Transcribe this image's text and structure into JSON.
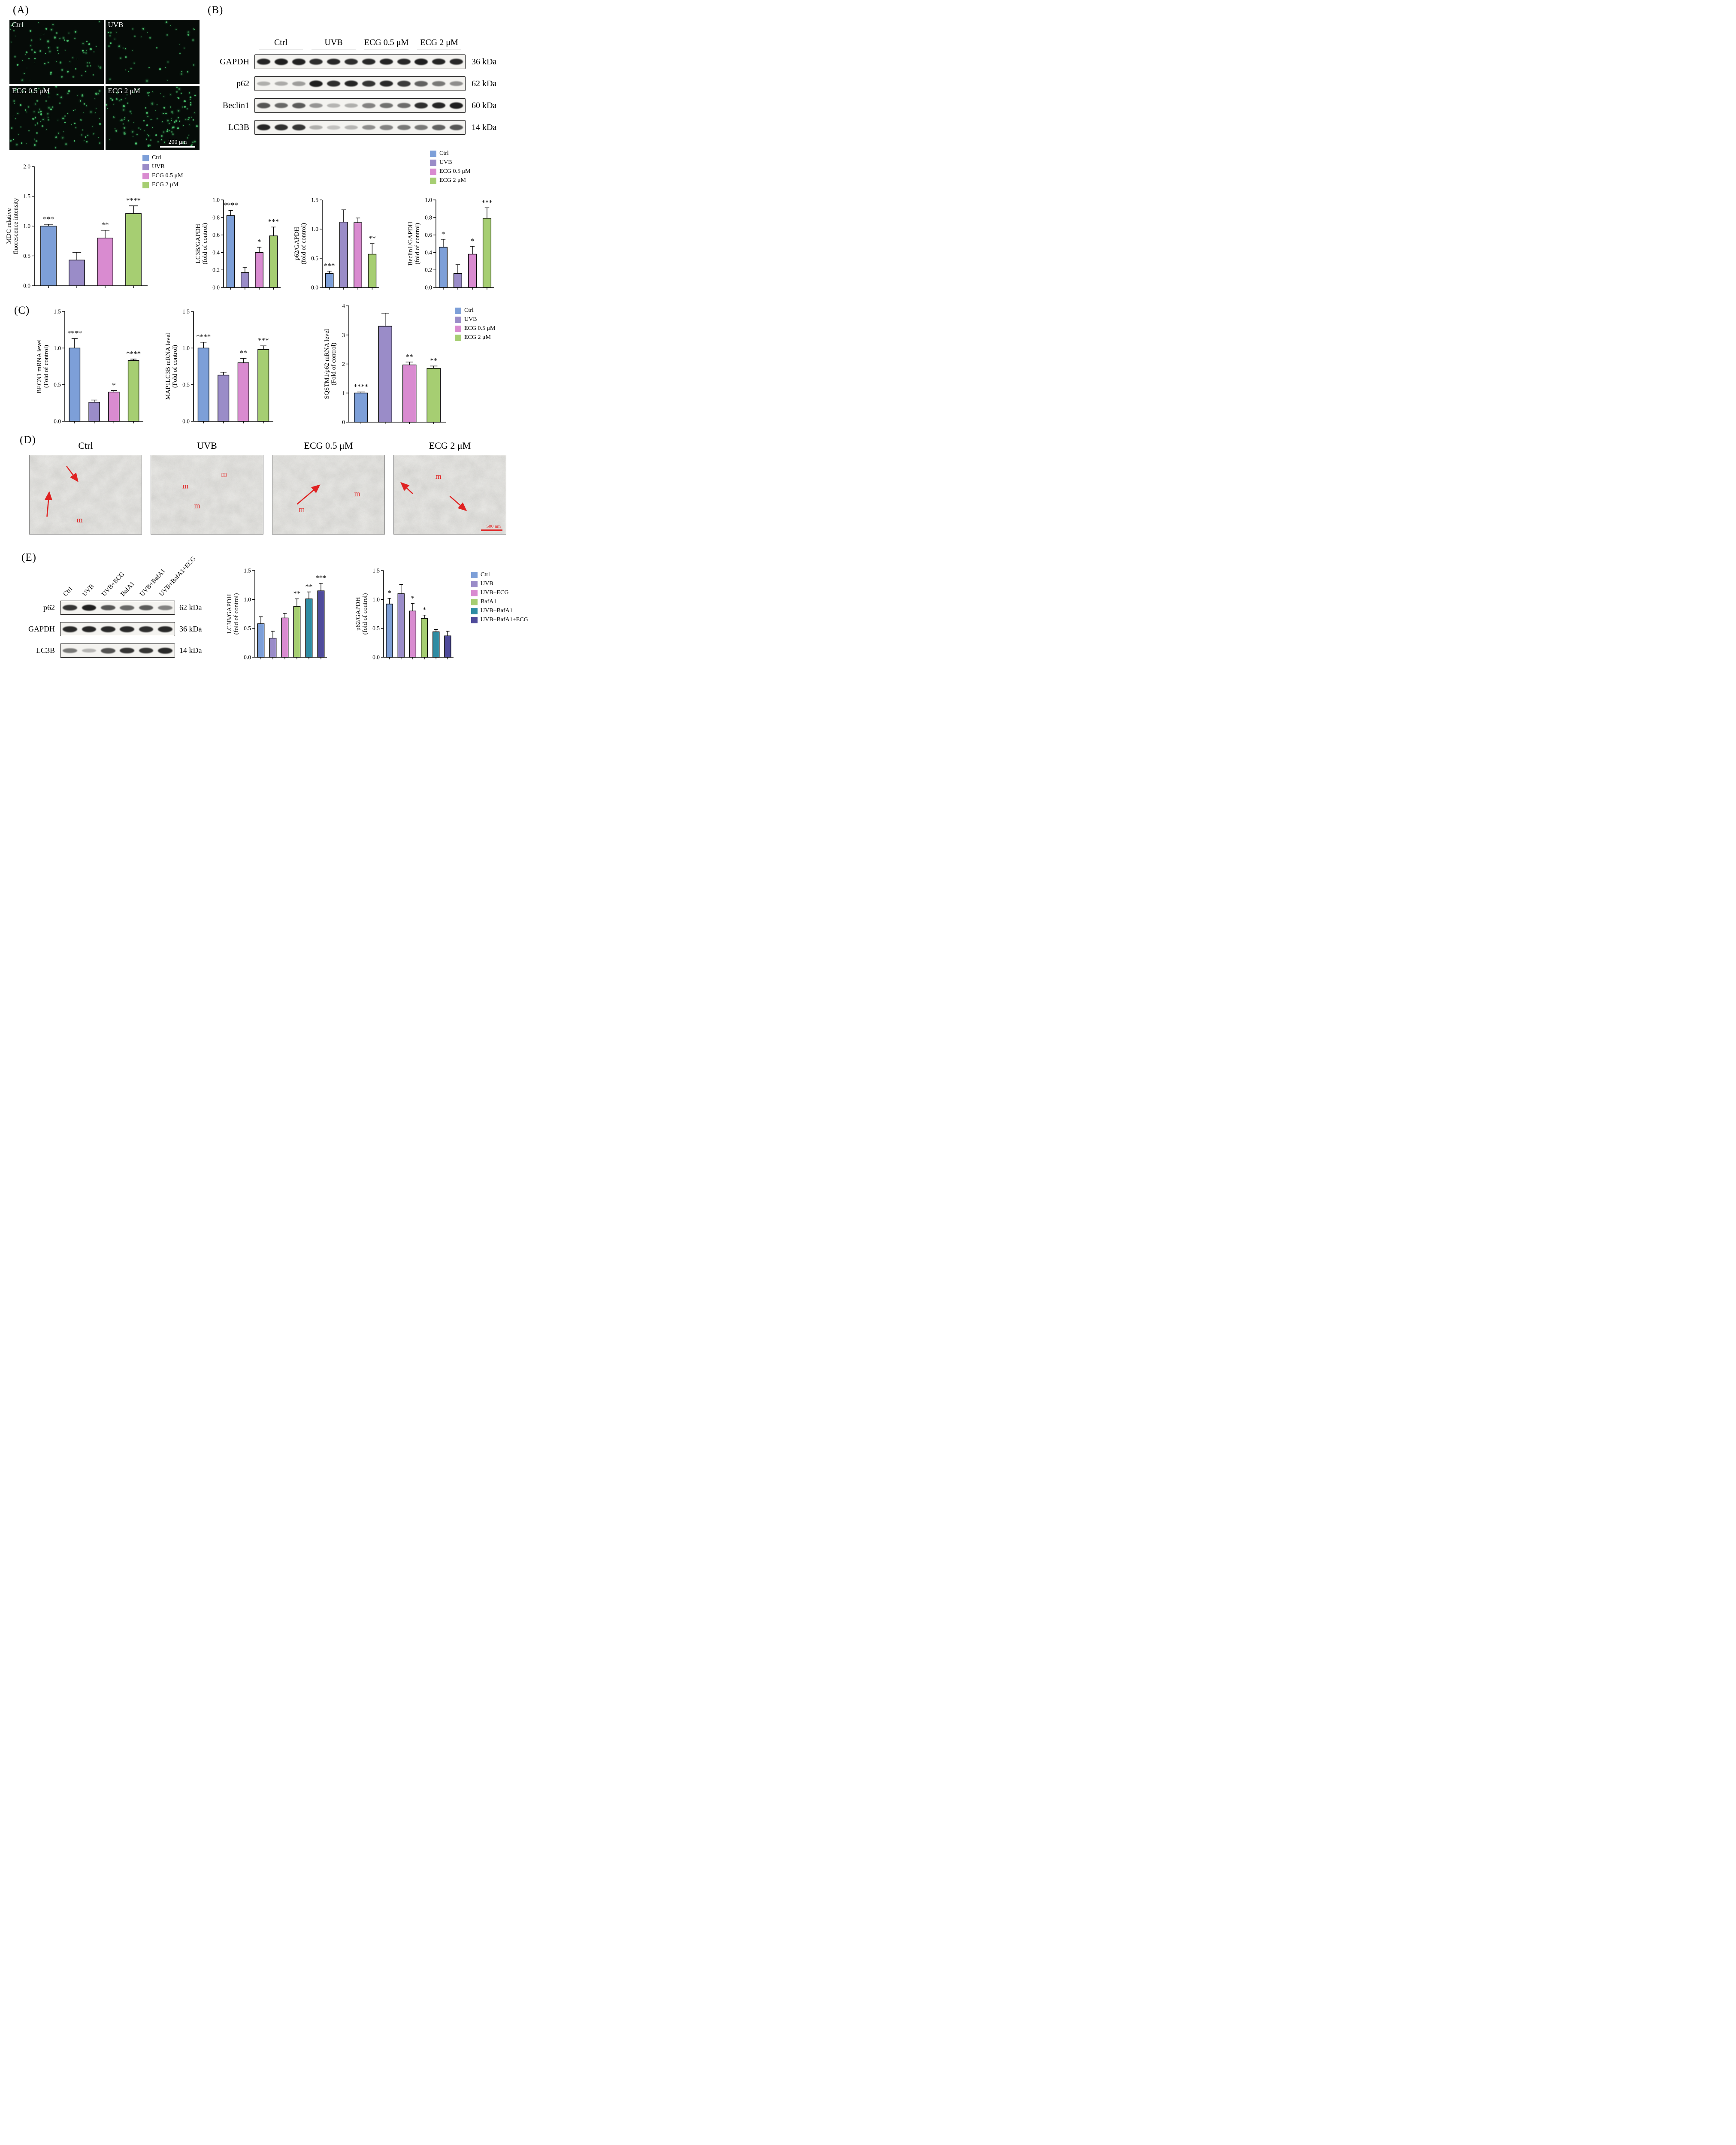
{
  "colors": {
    "ctrl": "#7D9FD8",
    "uvb": "#9A8CC8",
    "ecg05": "#D98BD0",
    "ecg2": "#A6CE72",
    "uvb_bafa1": "#2F8CA3",
    "uvb_bafa1_ecg": "#4F4B9B",
    "annotation_red": "#E02222",
    "micro_dot": "#3DBB63"
  },
  "panel_a": {
    "label": "(A)",
    "images": [
      {
        "label": "Ctrl",
        "dots": 85
      },
      {
        "label": "UVB",
        "dots": 50
      },
      {
        "label": "ECG 0.5 μM",
        "dots": 110
      },
      {
        "label": "ECG 2 μM",
        "dots": 135
      }
    ],
    "scale_bar": "200 μm"
  },
  "panel_b": {
    "label": "(B)",
    "groups": [
      "Ctrl",
      "UVB",
      "ECG 0.5 μM",
      "ECG 2 μM"
    ],
    "rows": [
      {
        "protein": "GAPDH",
        "kda": "36 kDa",
        "bands": [
          0.92,
          0.95,
          0.93,
          0.88,
          0.9,
          0.88,
          0.9,
          0.92,
          0.9,
          0.95,
          0.92,
          0.9
        ]
      },
      {
        "protein": "p62",
        "kda": "62 kDa",
        "bands": [
          0.3,
          0.32,
          0.38,
          0.95,
          0.88,
          0.92,
          0.85,
          0.9,
          0.82,
          0.65,
          0.55,
          0.45
        ]
      },
      {
        "protein": "Beclin1",
        "kda": "60 kDa",
        "bands": [
          0.7,
          0.62,
          0.68,
          0.42,
          0.28,
          0.3,
          0.5,
          0.58,
          0.6,
          0.88,
          0.92,
          0.95
        ]
      },
      {
        "protein": "LC3B",
        "kda": "14 kDa",
        "bands": [
          0.92,
          0.88,
          0.85,
          0.3,
          0.22,
          0.28,
          0.45,
          0.5,
          0.55,
          0.55,
          0.65,
          0.7
        ]
      }
    ]
  },
  "panel_c": {
    "label": "(C)"
  },
  "panel_d": {
    "label": "(D)",
    "images": [
      {
        "label": "Ctrl",
        "seed": 7,
        "arrows": [
          [
            0.33,
            0.14,
            0.43,
            0.33
          ],
          [
            0.155,
            0.78,
            0.175,
            0.47
          ]
        ],
        "m": [
          [
            0.42,
            0.85
          ]
        ]
      },
      {
        "label": "UVB",
        "seed": 13,
        "arrows": [],
        "m": [
          [
            0.28,
            0.42
          ],
          [
            0.625,
            0.27
          ],
          [
            0.385,
            0.67
          ]
        ]
      },
      {
        "label": "ECG 0.5 μM",
        "seed": 21,
        "arrows": [
          [
            0.22,
            0.62,
            0.42,
            0.38
          ]
        ],
        "m": [
          [
            0.235,
            0.72
          ],
          [
            0.73,
            0.52
          ]
        ]
      },
      {
        "label": "ECG 2 μM",
        "seed": 29,
        "arrows": [
          [
            0.17,
            0.49,
            0.065,
            0.35
          ],
          [
            0.5,
            0.52,
            0.645,
            0.7
          ]
        ],
        "m": [
          [
            0.37,
            0.3
          ]
        ],
        "scale_bar": "500 nm"
      }
    ]
  },
  "panel_e": {
    "label": "(E)",
    "lanes": [
      "Ctrl",
      "UVB",
      "UVB+ECG",
      "BafA1",
      "UVB+BafA1",
      "UVB+BafA1+ECG"
    ],
    "rows": [
      {
        "protein": "p62",
        "kda": "62 kDa",
        "bands": [
          0.85,
          0.95,
          0.7,
          0.62,
          0.68,
          0.5
        ]
      },
      {
        "protein": "GAPDH",
        "kda": "36 kDa",
        "bands": [
          0.9,
          0.92,
          0.9,
          0.9,
          0.88,
          0.9
        ]
      },
      {
        "protein": "LC3B",
        "kda": "14 kDa",
        "bands": [
          0.55,
          0.28,
          0.72,
          0.85,
          0.85,
          0.9
        ]
      }
    ]
  },
  "legends": {
    "four_group": [
      {
        "label": "Ctrl",
        "color": "ctrl"
      },
      {
        "label": "UVB",
        "color": "uvb"
      },
      {
        "label": "ECG 0.5 μM",
        "color": "ecg05"
      },
      {
        "label": "ECG 2 μM",
        "color": "ecg2"
      }
    ],
    "six_group": [
      {
        "label": "Ctrl",
        "color": "ctrl"
      },
      {
        "label": "UVB",
        "color": "uvb"
      },
      {
        "label": "UVB+ECG",
        "color": "ecg05"
      },
      {
        "label": "BafA1",
        "color": "ecg2"
      },
      {
        "label": "UVB+BafA1",
        "color": "uvb_bafa1"
      },
      {
        "label": "UVB+BafA1+ECG",
        "color": "uvb_bafa1_ecg"
      }
    ]
  },
  "chart_data": [
    {
      "id": "mdc",
      "type": "bar",
      "ylabel_lines": [
        "MDC relative",
        "fluorescence intensity"
      ],
      "categories": [
        "Ctrl",
        "UVB",
        "ECG 0.5 μM",
        "ECG 2 μM"
      ],
      "values": [
        1.0,
        0.43,
        0.8,
        1.21
      ],
      "errors": [
        0.03,
        0.13,
        0.13,
        0.13
      ],
      "sig": [
        "***",
        "",
        "**",
        "****"
      ],
      "ylim": [
        0,
        2.0
      ],
      "yticks": [
        0,
        0.5,
        1.0,
        1.5,
        2.0
      ],
      "ydec": 1,
      "colors": [
        "ctrl",
        "uvb",
        "ecg05",
        "ecg2"
      ]
    },
    {
      "id": "lc3b_gapdh_b",
      "type": "bar",
      "ylabel_lines": [
        "LC3B/GAPDH",
        "(fold of control)"
      ],
      "categories": [
        "Ctrl",
        "UVB",
        "ECG 0.5 μM",
        "ECG 2 μM"
      ],
      "values": [
        0.82,
        0.17,
        0.4,
        0.59
      ],
      "errors": [
        0.06,
        0.06,
        0.06,
        0.1
      ],
      "sig": [
        "****",
        "",
        "*",
        "***"
      ],
      "ylim": [
        0,
        1.0
      ],
      "yticks": [
        0,
        0.2,
        0.4,
        0.6,
        0.8,
        1.0
      ],
      "ydec": 1,
      "colors": [
        "ctrl",
        "uvb",
        "ecg05",
        "ecg2"
      ]
    },
    {
      "id": "p62_gapdh_b",
      "type": "bar",
      "ylabel_lines": [
        "p62/GAPDH",
        "(fold of control)"
      ],
      "categories": [
        "Ctrl",
        "UVB",
        "ECG 0.5 μM",
        "ECG 2 μM"
      ],
      "values": [
        0.24,
        1.12,
        1.11,
        0.57
      ],
      "errors": [
        0.04,
        0.21,
        0.08,
        0.18
      ],
      "sig": [
        "***",
        "",
        "",
        "**"
      ],
      "ylim": [
        0,
        1.5
      ],
      "yticks": [
        0,
        0.5,
        1.0,
        1.5
      ],
      "ydec": 1,
      "colors": [
        "ctrl",
        "uvb",
        "ecg05",
        "ecg2"
      ]
    },
    {
      "id": "beclin1_gapdh_b",
      "type": "bar",
      "ylabel_lines": [
        "Beclin1/GAPDH",
        "(fold of control)"
      ],
      "categories": [
        "Ctrl",
        "UVB",
        "ECG 0.5 μM",
        "ECG 2 μM"
      ],
      "values": [
        0.46,
        0.16,
        0.38,
        0.79
      ],
      "errors": [
        0.09,
        0.1,
        0.09,
        0.12
      ],
      "sig": [
        "*",
        "",
        "*",
        "***"
      ],
      "ylim": [
        0,
        1.0
      ],
      "yticks": [
        0,
        0.2,
        0.4,
        0.6,
        0.8,
        1.0
      ],
      "ydec": 1,
      "colors": [
        "ctrl",
        "uvb",
        "ecg05",
        "ecg2"
      ]
    },
    {
      "id": "becn1_mrna",
      "type": "bar",
      "ylabel_lines": [
        "BECN1 mRNA level",
        "(Fold of control)"
      ],
      "categories": [
        "Ctrl",
        "UVB",
        "ECG 0.5 μM",
        "ECG 2 μM"
      ],
      "values": [
        1.0,
        0.26,
        0.4,
        0.83
      ],
      "errors": [
        0.13,
        0.03,
        0.02,
        0.02
      ],
      "sig": [
        "****",
        "",
        "*",
        "****"
      ],
      "ylim": [
        0,
        1.5
      ],
      "yticks": [
        0,
        0.5,
        1.0,
        1.5
      ],
      "ydec": 1,
      "colors": [
        "ctrl",
        "uvb",
        "ecg05",
        "ecg2"
      ]
    },
    {
      "id": "map1lc3b_mrna",
      "type": "bar",
      "ylabel_lines": [
        "MAP1LC3B mRNA level",
        "(Fold of control)"
      ],
      "categories": [
        "Ctrl",
        "UVB",
        "ECG 0.5 μM",
        "ECG 2 μM"
      ],
      "values": [
        1.0,
        0.63,
        0.8,
        0.98
      ],
      "errors": [
        0.08,
        0.04,
        0.06,
        0.05
      ],
      "sig": [
        "****",
        "",
        "**",
        "***"
      ],
      "ylim": [
        0,
        1.5
      ],
      "yticks": [
        0,
        0.5,
        1.0,
        1.5
      ],
      "ydec": 1,
      "colors": [
        "ctrl",
        "uvb",
        "ecg05",
        "ecg2"
      ]
    },
    {
      "id": "sqstm1_mrna",
      "type": "bar",
      "ylabel_lines": [
        "SQSTM1/p62 mRNA level",
        "(Fold of control)"
      ],
      "categories": [
        "Ctrl",
        "UVB",
        "ECG 0.5 μM",
        "ECG 2 μM"
      ],
      "values": [
        1.0,
        3.3,
        1.97,
        1.85
      ],
      "errors": [
        0.04,
        0.45,
        0.1,
        0.08
      ],
      "sig": [
        "****",
        "",
        "**",
        "**"
      ],
      "ylim": [
        0,
        4
      ],
      "yticks": [
        0,
        1,
        2,
        3,
        4
      ],
      "ydec": 0,
      "colors": [
        "ctrl",
        "uvb",
        "ecg05",
        "ecg2"
      ]
    },
    {
      "id": "lc3b_gapdh_e",
      "type": "bar",
      "ylabel_lines": [
        "LC3B/GAPDH",
        "(fold of control)"
      ],
      "categories": [
        "Ctrl",
        "UVB",
        "UVB+ECG",
        "BafA1",
        "UVB+BafA1",
        "UVB+BafA1+ECG"
      ],
      "values": [
        0.58,
        0.33,
        0.68,
        0.88,
        1.01,
        1.15
      ],
      "errors": [
        0.12,
        0.12,
        0.08,
        0.13,
        0.12,
        0.13
      ],
      "sig": [
        "",
        "",
        "",
        "**",
        "**",
        "***"
      ],
      "ylim": [
        0,
        1.5
      ],
      "yticks": [
        0,
        0.5,
        1.0,
        1.5
      ],
      "ydec": 1,
      "colors": [
        "ctrl",
        "uvb",
        "ecg05",
        "ecg2",
        "uvb_bafa1",
        "uvb_bafa1_ecg"
      ]
    },
    {
      "id": "p62_gapdh_e",
      "type": "bar",
      "ylabel_lines": [
        "p62/GAPDH",
        "(fold of control)"
      ],
      "categories": [
        "Ctrl",
        "UVB",
        "UVB+ECG",
        "BafA1",
        "UVB+BafA1",
        "UVB+BafA1+ECG"
      ],
      "values": [
        0.92,
        1.1,
        0.8,
        0.67,
        0.44,
        0.37
      ],
      "errors": [
        0.1,
        0.16,
        0.13,
        0.06,
        0.04,
        0.08
      ],
      "sig": [
        "*",
        "",
        "*",
        "*",
        "",
        ""
      ],
      "ylim": [
        0,
        1.5
      ],
      "yticks": [
        0,
        0.5,
        1.0,
        1.5
      ],
      "ydec": 1,
      "colors": [
        "ctrl",
        "uvb",
        "ecg05",
        "ecg2",
        "uvb_bafa1",
        "uvb_bafa1_ecg"
      ]
    }
  ]
}
